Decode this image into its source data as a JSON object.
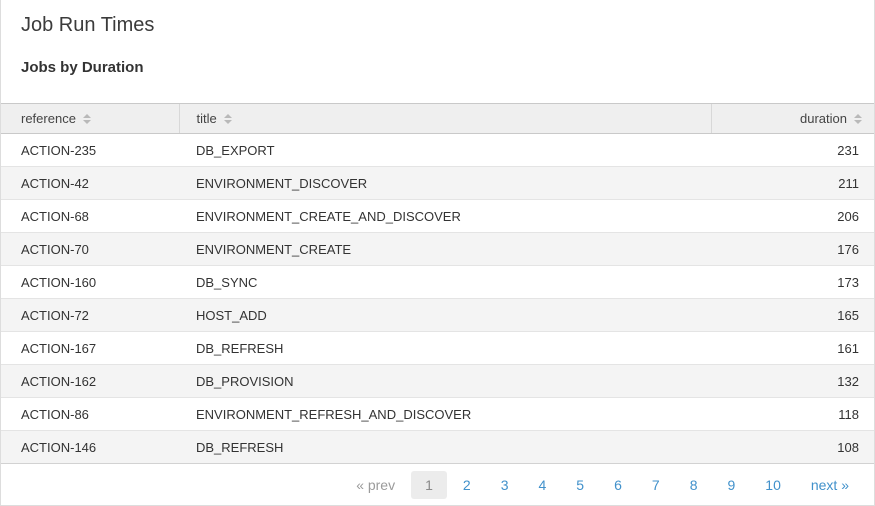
{
  "page": {
    "title": "Job Run Times",
    "subtitle": "Jobs by Duration"
  },
  "table": {
    "columns": [
      {
        "key": "reference",
        "label": "reference",
        "sortable": true
      },
      {
        "key": "title",
        "label": "title",
        "sortable": true
      },
      {
        "key": "duration",
        "label": "duration",
        "sortable": true
      }
    ],
    "rows": [
      {
        "reference": "ACTION-235",
        "title": "DB_EXPORT",
        "duration": 231
      },
      {
        "reference": "ACTION-42",
        "title": "ENVIRONMENT_DISCOVER",
        "duration": 211
      },
      {
        "reference": "ACTION-68",
        "title": "ENVIRONMENT_CREATE_AND_DISCOVER",
        "duration": 206
      },
      {
        "reference": "ACTION-70",
        "title": "ENVIRONMENT_CREATE",
        "duration": 176
      },
      {
        "reference": "ACTION-160",
        "title": "DB_SYNC",
        "duration": 173
      },
      {
        "reference": "ACTION-72",
        "title": "HOST_ADD",
        "duration": 165
      },
      {
        "reference": "ACTION-167",
        "title": "DB_REFRESH",
        "duration": 161
      },
      {
        "reference": "ACTION-162",
        "title": "DB_PROVISION",
        "duration": 132
      },
      {
        "reference": "ACTION-86",
        "title": "ENVIRONMENT_REFRESH_AND_DISCOVER",
        "duration": 118
      },
      {
        "reference": "ACTION-146",
        "title": "DB_REFRESH",
        "duration": 108
      }
    ]
  },
  "pagination": {
    "prev_label": "« prev",
    "next_label": "next »",
    "current_page": "1",
    "pages": [
      "1",
      "2",
      "3",
      "4",
      "5",
      "6",
      "7",
      "8",
      "9",
      "10"
    ]
  },
  "colors": {
    "link_blue": "#4191cb",
    "header_bg": "#efefef",
    "stripe_bg": "#f4f4f4",
    "border": "#dddddd",
    "text": "#333333"
  },
  "icons": {
    "sort": "sort-updown-icon"
  }
}
